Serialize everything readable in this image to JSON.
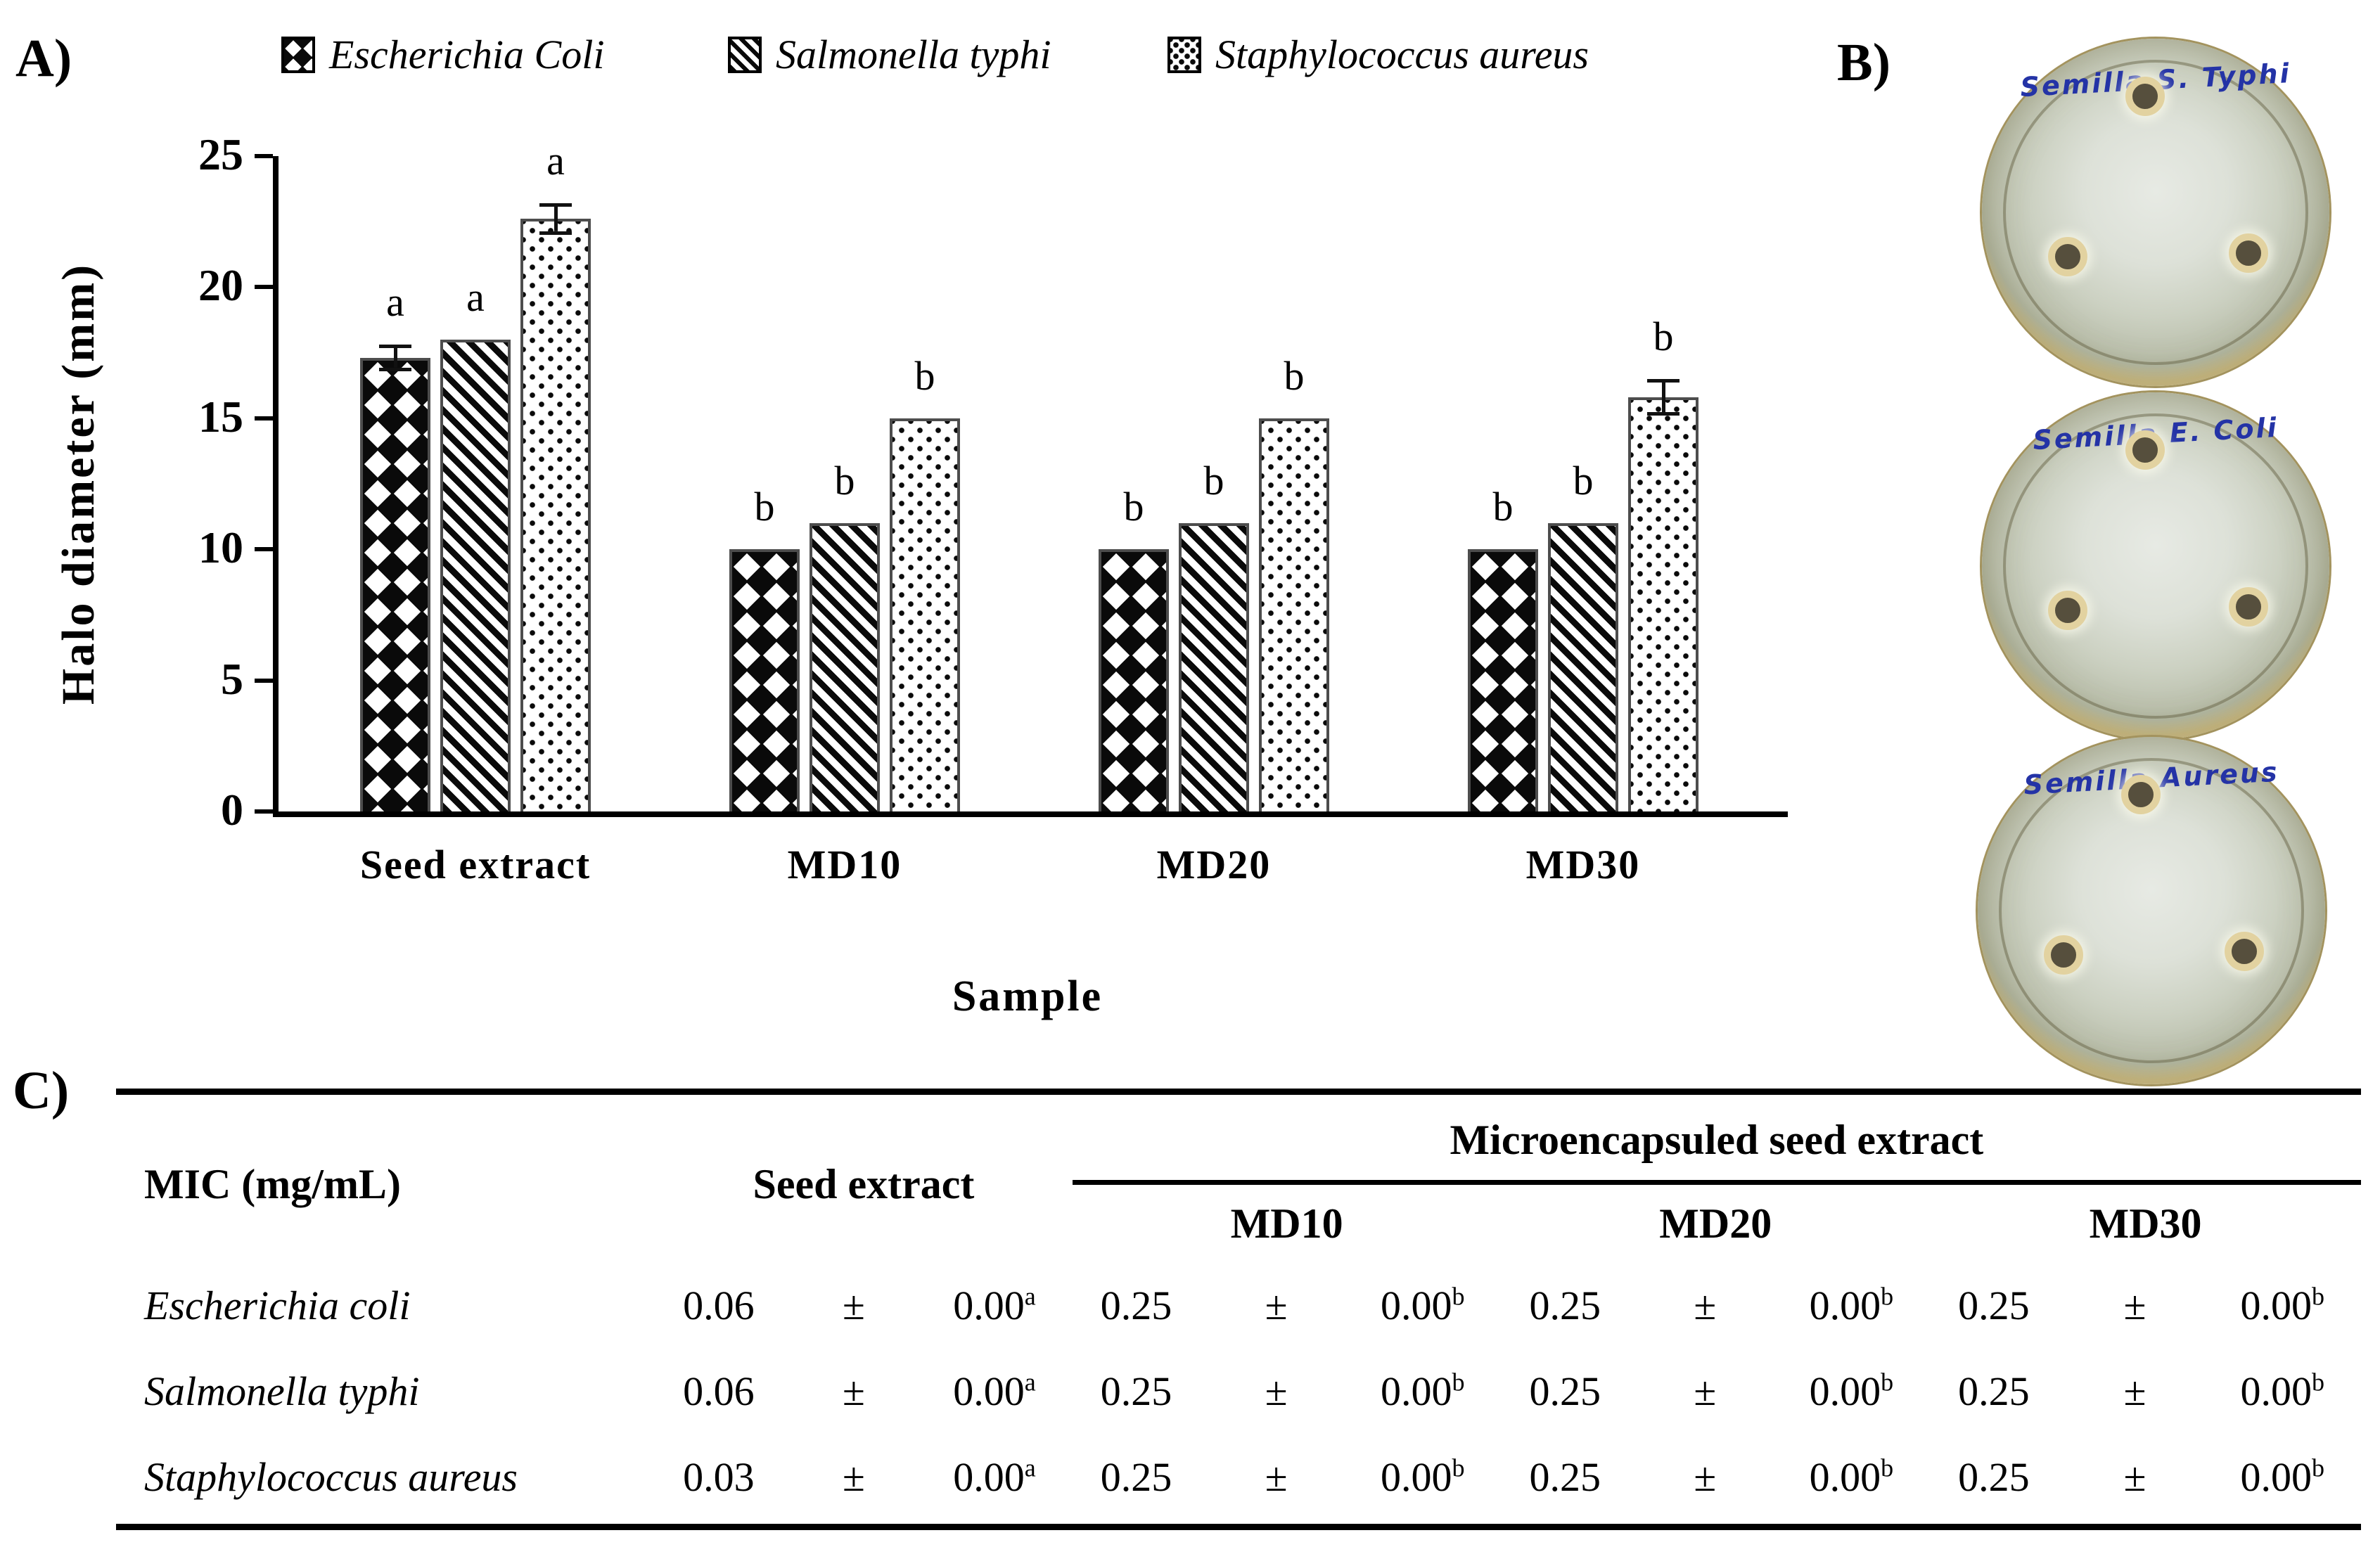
{
  "panels": {
    "a": "A)",
    "b": "B)",
    "c": "C)"
  },
  "legend": [
    {
      "label": "Escherichia Coli",
      "pattern": "diamonds"
    },
    {
      "label": "Salmonella typhi",
      "pattern": "stripes"
    },
    {
      "label": "Staphylococcus aureus",
      "pattern": "dots"
    }
  ],
  "chart_data": {
    "type": "bar",
    "title": "",
    "xlabel": "Sample",
    "ylabel": "Halo diameter (mm)",
    "ylim": [
      0,
      25
    ],
    "yticks": [
      0,
      5,
      10,
      15,
      20,
      25
    ],
    "grid": false,
    "legend_position": "top",
    "categories": [
      "Seed extract",
      "MD10",
      "MD20",
      "MD30"
    ],
    "series": [
      {
        "name": "Escherichia Coli",
        "pattern": "diamonds",
        "values": [
          17.3,
          10,
          10,
          10
        ],
        "errors": [
          0.5,
          0,
          0,
          0
        ],
        "sig_letters": [
          "a",
          "b",
          "b",
          "b"
        ]
      },
      {
        "name": "Salmonella typhi",
        "pattern": "stripes",
        "values": [
          18,
          11,
          11,
          11
        ],
        "errors": [
          0,
          0,
          0,
          0
        ],
        "sig_letters": [
          "a",
          "b",
          "b",
          "b"
        ]
      },
      {
        "name": "Staphylococcus aureus",
        "pattern": "dots",
        "values": [
          22.6,
          15,
          15,
          15.8
        ],
        "errors": [
          0.6,
          0,
          0,
          0.7
        ],
        "sig_letters": [
          "a",
          "b",
          "b",
          "b"
        ]
      }
    ]
  },
  "petri_dishes": [
    {
      "label": "Semilla S. Typhi"
    },
    {
      "label": "Semilla E. Coli"
    },
    {
      "label": "Semilla Aureus"
    }
  ],
  "table": {
    "col1_header": "MIC (mg/mL)",
    "col2_header": "Seed extract",
    "span_header": "Microencapsuled seed extract",
    "sub_headers": [
      "MD10",
      "MD20",
      "MD30"
    ],
    "rows": [
      {
        "organism": "Escherichia coli",
        "cells": [
          {
            "v": "0.06",
            "pm": "±",
            "e": "0.00",
            "sup": "a"
          },
          {
            "v": "0.25",
            "pm": "±",
            "e": "0.00",
            "sup": "b"
          },
          {
            "v": "0.25",
            "pm": "±",
            "e": "0.00",
            "sup": "b"
          },
          {
            "v": "0.25",
            "pm": "±",
            "e": "0.00",
            "sup": "b"
          }
        ]
      },
      {
        "organism": "Salmonella typhi",
        "cells": [
          {
            "v": "0.06",
            "pm": "±",
            "e": "0.00",
            "sup": "a"
          },
          {
            "v": "0.25",
            "pm": "±",
            "e": "0.00",
            "sup": "b"
          },
          {
            "v": "0.25",
            "pm": "±",
            "e": "0.00",
            "sup": "b"
          },
          {
            "v": "0.25",
            "pm": "±",
            "e": "0.00",
            "sup": "b"
          }
        ]
      },
      {
        "organism": "Staphylococcus aureus",
        "cells": [
          {
            "v": "0.03",
            "pm": "±",
            "e": "0.00",
            "sup": "a"
          },
          {
            "v": "0.25",
            "pm": "±",
            "e": "0.00",
            "sup": "b"
          },
          {
            "v": "0.25",
            "pm": "±",
            "e": "0.00",
            "sup": "b"
          },
          {
            "v": "0.25",
            "pm": "±",
            "e": "0.00",
            "sup": "b"
          }
        ]
      }
    ]
  },
  "colors": {
    "ink": "#000000",
    "bar_outline": "#4d4d4d",
    "handwriting_blue": "#2433a6",
    "dish_rim": "#cdbd85",
    "dish_agar": "#c3c8b8"
  }
}
